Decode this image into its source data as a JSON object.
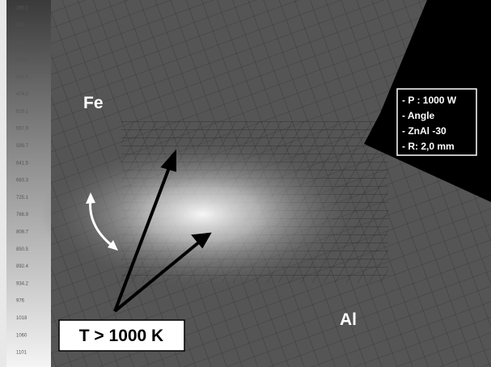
{
  "legend": {
    "labels": [
      "265.2",
      "307",
      "348.8",
      "390.6",
      "432.4",
      "474.2",
      "516.1",
      "557.9",
      "599.7",
      "641.5",
      "683.3",
      "725.1",
      "766.9",
      "808.7",
      "850.5",
      "892.4",
      "934.2",
      "976",
      "1018",
      "1060",
      "1101"
    ]
  },
  "labels": {
    "fe": "Fe",
    "al": "Al",
    "threshold": "T > 1000 K"
  },
  "info": {
    "lines": [
      "- P : 1000 W",
      "- Angle",
      "- ZnAl -30",
      "- R: 2,0 mm"
    ]
  }
}
